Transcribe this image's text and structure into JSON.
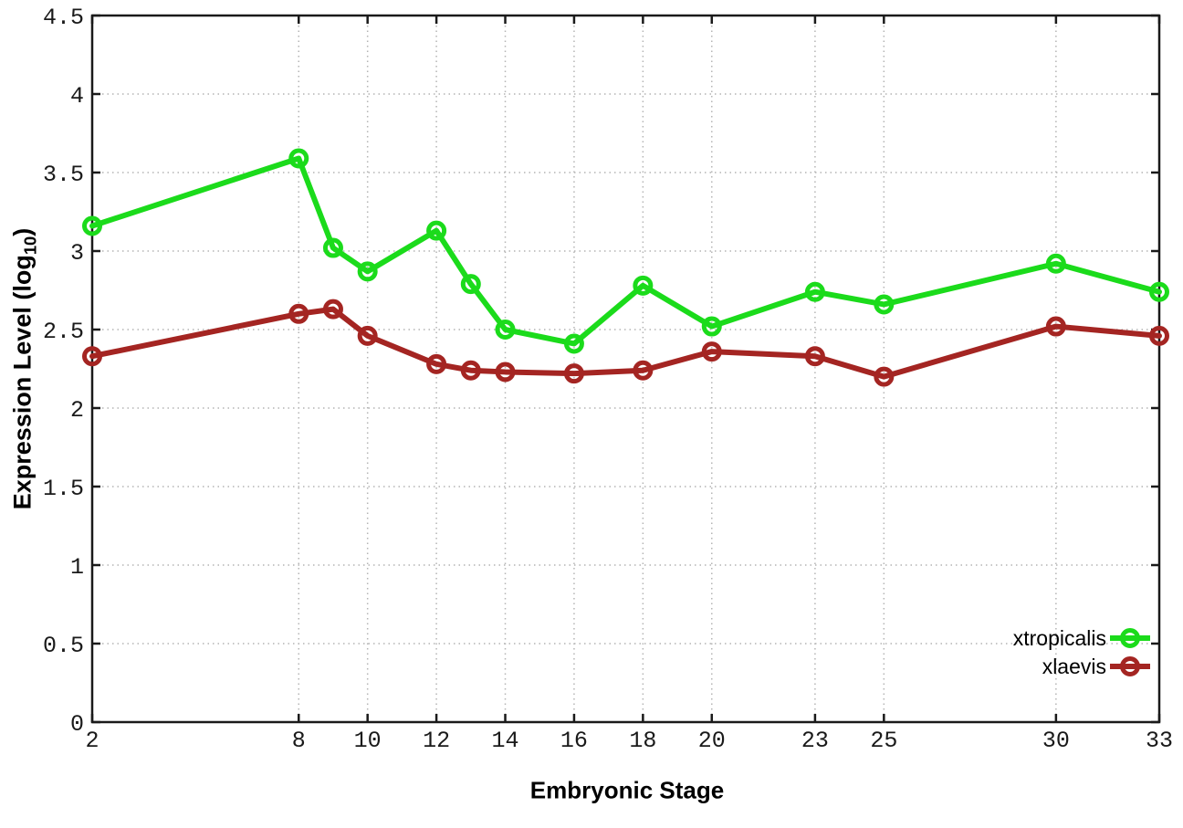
{
  "figure": {
    "background": "#ffffff",
    "axis_color": "#1a1a1a",
    "grid_color": "#b4b4b4",
    "tick_label_color": "#1a1a1a"
  },
  "chart_data": {
    "type": "line",
    "title": "",
    "xlabel": "Embryonic Stage",
    "ylabel": "Expression Level (log10)",
    "ylabel_parts": {
      "pre": "Expression Level (log",
      "sub": "10",
      "post": ")"
    },
    "xlim": [
      2,
      33
    ],
    "ylim": [
      0,
      4.5
    ],
    "grid": true,
    "legend_position": "inside-bottom-right",
    "x_ticks": [
      2,
      8,
      10,
      12,
      14,
      16,
      18,
      20,
      23,
      25,
      30,
      33
    ],
    "y_ticks": [
      0,
      0.5,
      1,
      1.5,
      2,
      2.5,
      3,
      3.5,
      4,
      4.5
    ],
    "y_tick_labels": [
      "0",
      "0.5",
      "1",
      "1.5",
      "2",
      "2.5",
      "3",
      "3.5",
      "4",
      "4.5"
    ],
    "x": [
      2,
      8,
      9,
      10,
      12,
      13,
      14,
      16,
      18,
      20,
      23,
      25,
      30,
      33
    ],
    "series": [
      {
        "name": "xtropicalis",
        "color": "#1bdb1b",
        "values": [
          3.16,
          3.59,
          3.02,
          2.87,
          3.13,
          2.79,
          2.5,
          2.41,
          2.78,
          2.52,
          2.74,
          2.66,
          2.92,
          2.74
        ]
      },
      {
        "name": "xlaevis",
        "color": "#a42522",
        "values": [
          2.33,
          2.6,
          2.63,
          2.46,
          2.28,
          2.24,
          2.23,
          2.22,
          2.24,
          2.36,
          2.33,
          2.2,
          2.52,
          2.46
        ]
      }
    ]
  }
}
